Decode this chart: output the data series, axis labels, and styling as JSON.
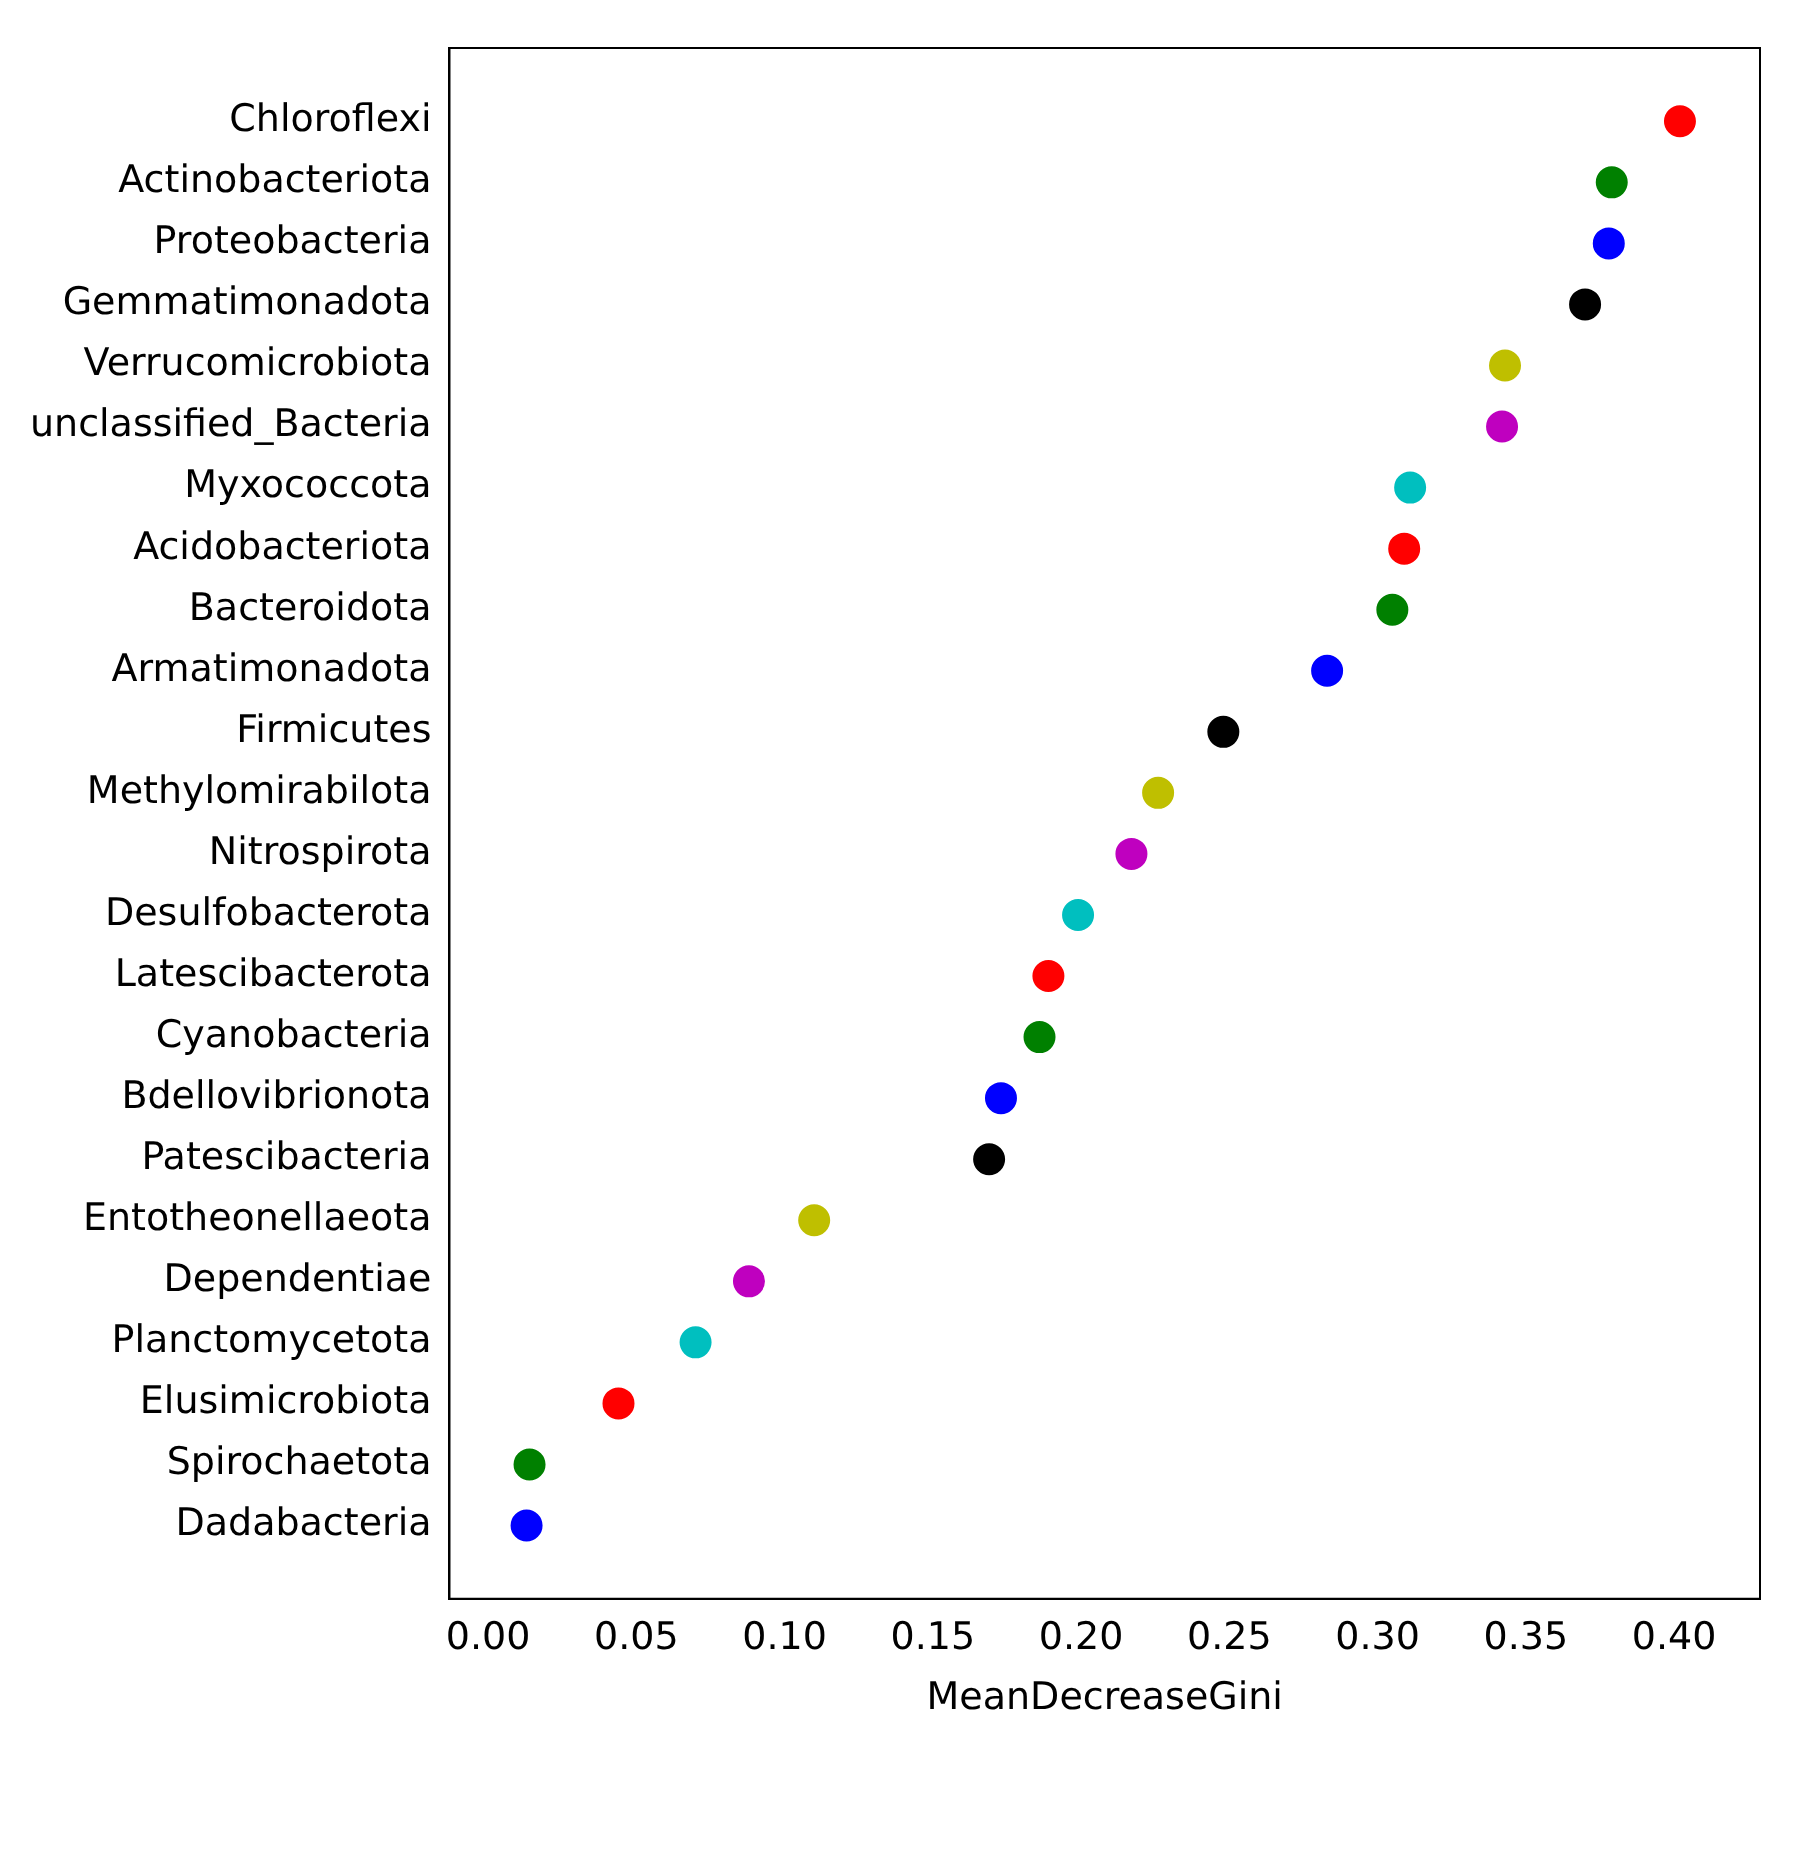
{
  "chart_data": {
    "type": "scatter",
    "orientation": "horizontal",
    "xlabel": "MeanDecreaseGini",
    "marker": "circle",
    "categories": [
      "Chloroflexi",
      "Actinobacteriota",
      "Proteobacteria",
      "Gemmatimonadota",
      "Verrucomicrobiota",
      "unclassified_Bacteria",
      "Myxococcota",
      "Acidobacteriota",
      "Bacteroidota",
      "Armatimonadota",
      "Firmicutes",
      "Methylomirabilota",
      "Nitrospirota",
      "Desulfobacterota",
      "Latescibacterota",
      "Cyanobacteria",
      "Bdellovibrionota",
      "Patescibacteria",
      "Entotheonellaeota",
      "Dependentiae",
      "Planctomycetota",
      "Elusimicrobiota",
      "Spirochaetota",
      "Dadabacteria"
    ],
    "values": [
      0.402,
      0.379,
      0.378,
      0.37,
      0.343,
      0.342,
      0.311,
      0.309,
      0.305,
      0.283,
      0.248,
      0.226,
      0.217,
      0.199,
      0.189,
      0.186,
      0.173,
      0.169,
      0.11,
      0.088,
      0.07,
      0.044,
      0.014,
      0.013
    ],
    "colors": [
      "#ff0000",
      "#008000",
      "#0000ff",
      "#000000",
      "#bfbf00",
      "#bf00bf",
      "#00bfbf",
      "#ff0000",
      "#008000",
      "#0000ff",
      "#000000",
      "#bfbf00",
      "#bf00bf",
      "#00bfbf",
      "#ff0000",
      "#008000",
      "#0000ff",
      "#000000",
      "#bfbf00",
      "#bf00bf",
      "#00bfbf",
      "#ff0000",
      "#008000",
      "#0000ff"
    ],
    "xlim": [
      -0.013,
      0.429
    ],
    "xticks": [
      {
        "value": 0,
        "label": "0.00"
      },
      {
        "value": 0.05,
        "label": "0.05"
      },
      {
        "value": 0.1,
        "label": "0.10"
      },
      {
        "value": 0.15,
        "label": "0.15"
      },
      {
        "value": 0.2,
        "label": "0.20"
      },
      {
        "value": 0.25,
        "label": "0.25"
      },
      {
        "value": 0.3,
        "label": "0.30"
      },
      {
        "value": 0.35,
        "label": "0.35"
      },
      {
        "value": 0.4,
        "label": "0.40"
      }
    ]
  }
}
